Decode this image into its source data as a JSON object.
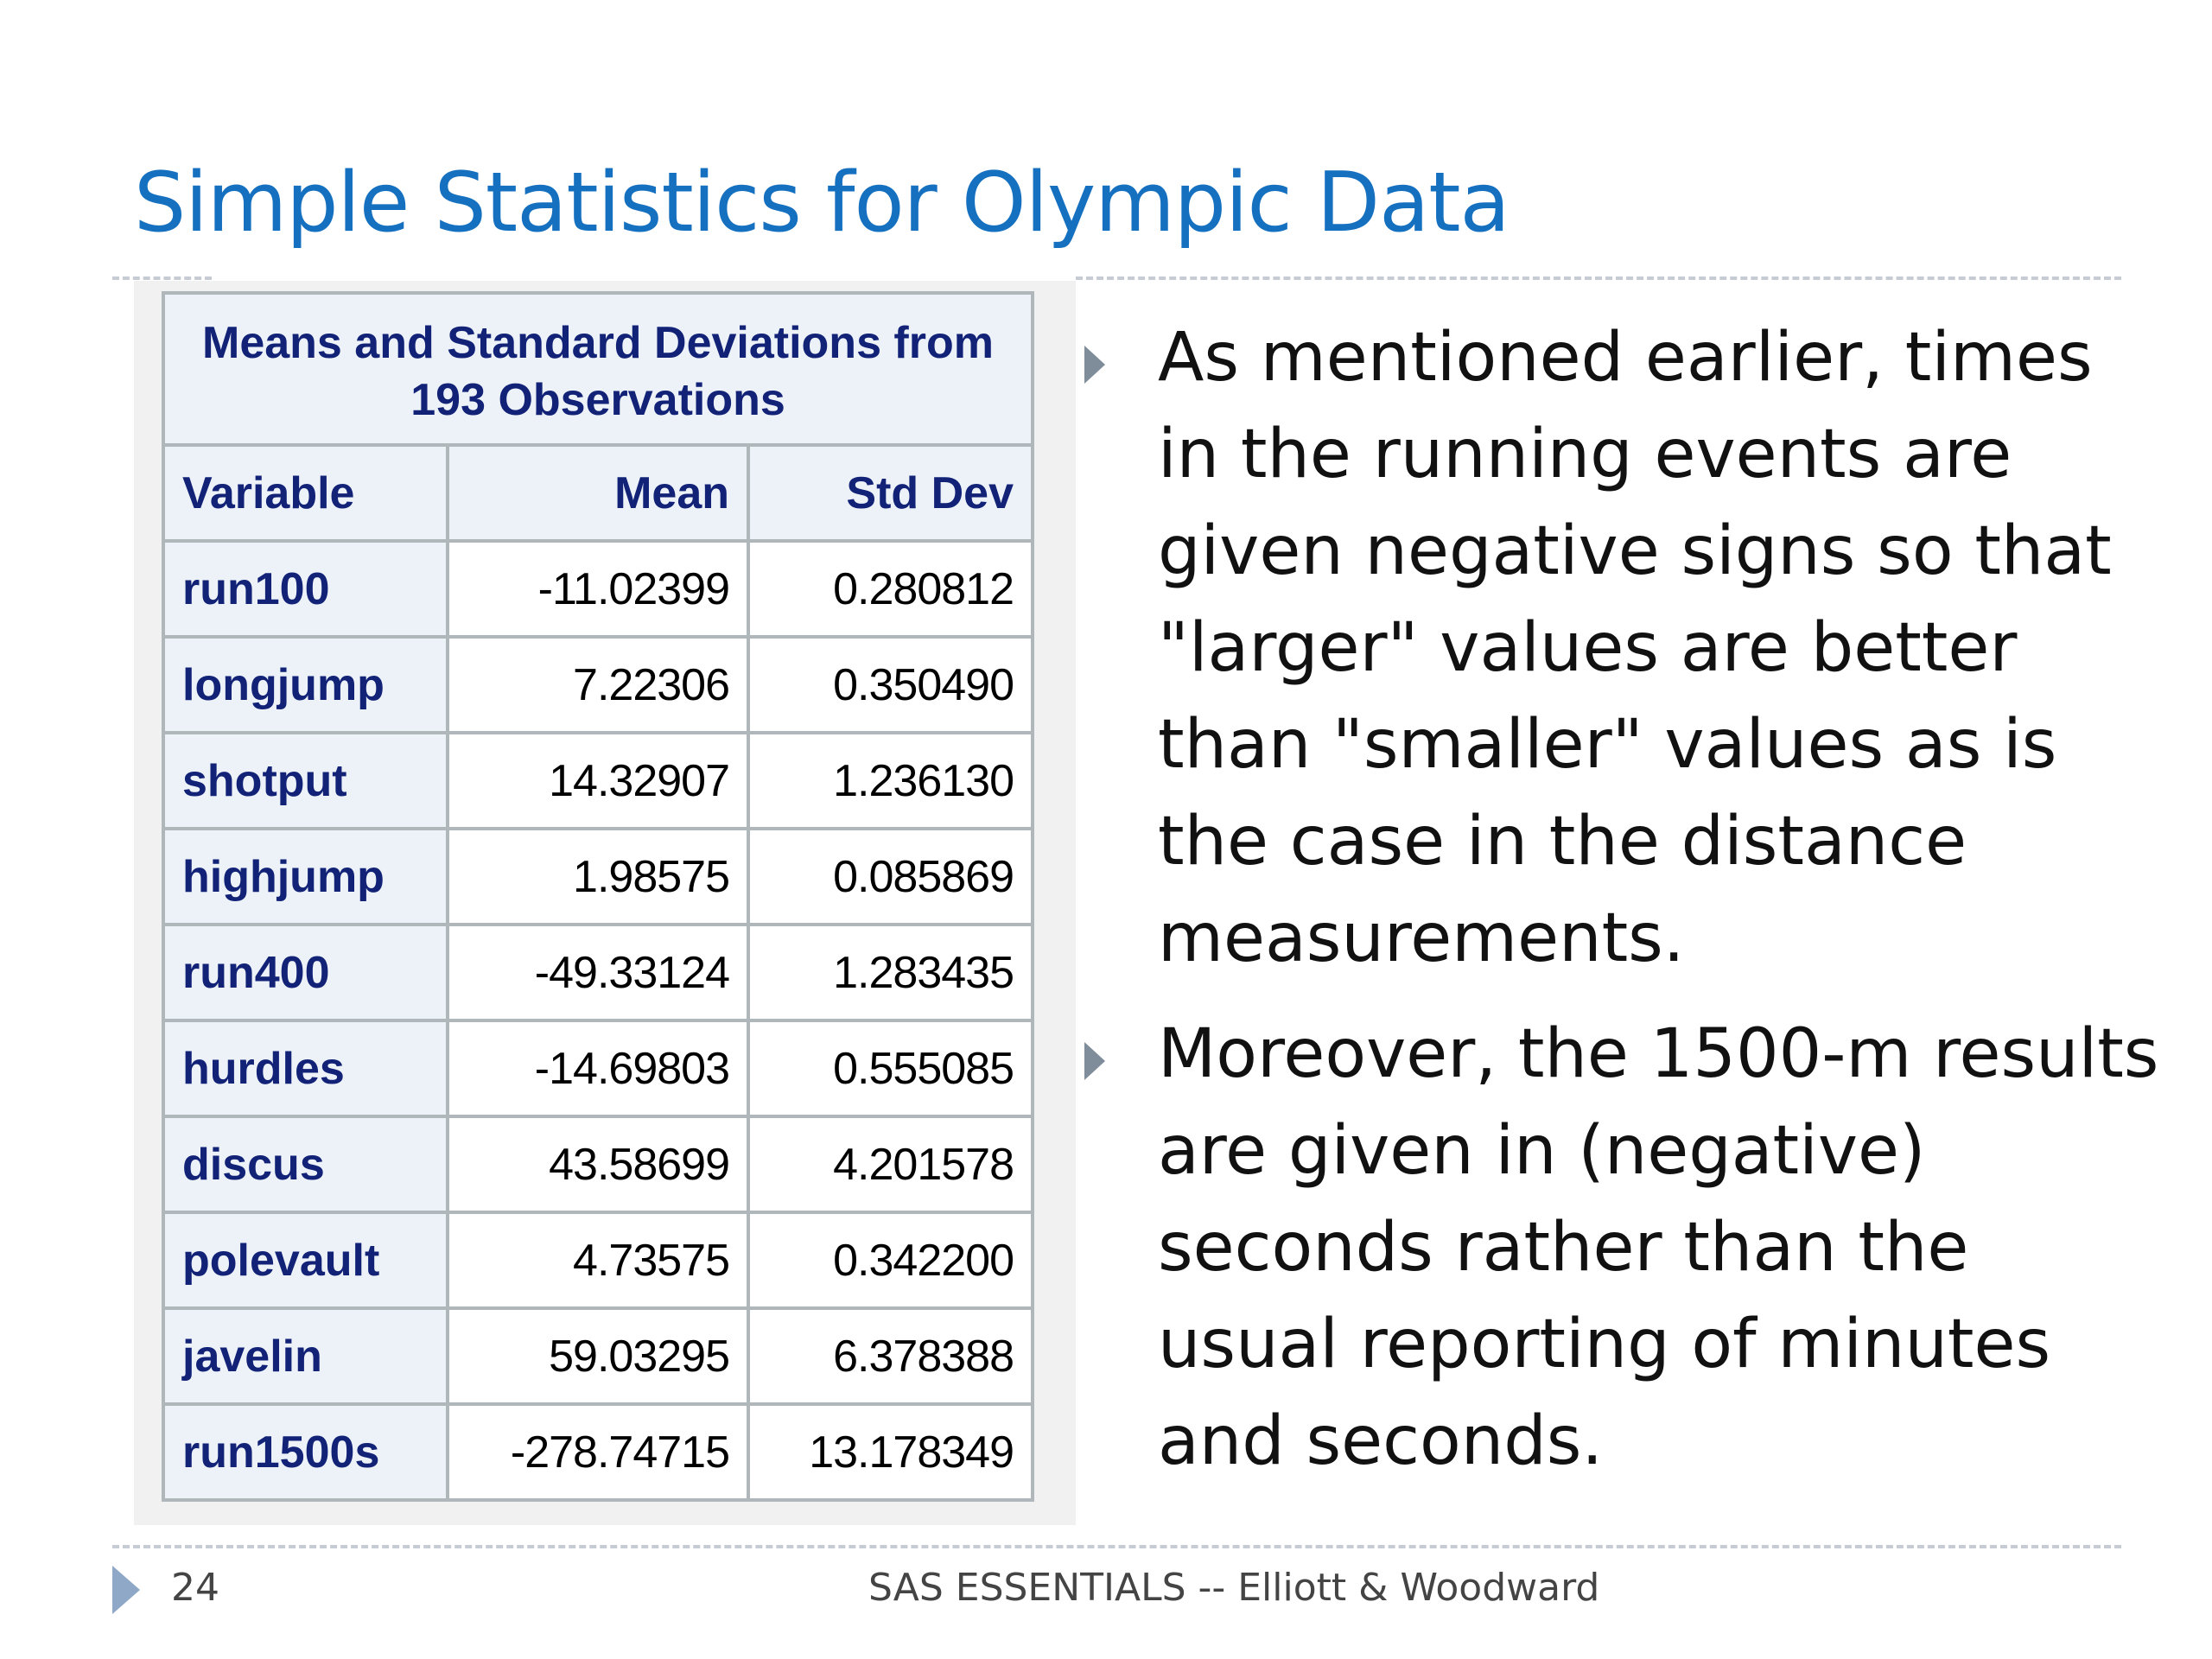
{
  "slide": {
    "title": "Simple Statistics for Olympic Data",
    "page_number": "24",
    "footer": "SAS ESSENTIALS -- Elliott & Woodward"
  },
  "table": {
    "caption_line1": "Means and Standard Deviations from",
    "caption_line2": "193 Observations",
    "headers": [
      "Variable",
      "Mean",
      "Std Dev"
    ],
    "rows": [
      {
        "variable": "run100",
        "mean": "-11.02399",
        "std_dev": "0.280812"
      },
      {
        "variable": "longjump",
        "mean": "7.22306",
        "std_dev": "0.350490"
      },
      {
        "variable": "shotput",
        "mean": "14.32907",
        "std_dev": "1.236130"
      },
      {
        "variable": "highjump",
        "mean": "1.98575",
        "std_dev": "0.085869"
      },
      {
        "variable": "run400",
        "mean": "-49.33124",
        "std_dev": "1.283435"
      },
      {
        "variable": "hurdles",
        "mean": "-14.69803",
        "std_dev": "0.555085"
      },
      {
        "variable": "discus",
        "mean": "43.58699",
        "std_dev": "4.201578"
      },
      {
        "variable": "polevault",
        "mean": "4.73575",
        "std_dev": "0.342200"
      },
      {
        "variable": "javelin",
        "mean": "59.03295",
        "std_dev": "6.378388"
      },
      {
        "variable": "run1500s",
        "mean": "-278.74715",
        "std_dev": "13.178349"
      }
    ]
  },
  "bullets": [
    "As mentioned earlier, times in the running events are given negative signs so that \"larger\" values are better than \"smaller\" values as is the case in the distance measurements.",
    "Moreover, the 1500-m results are given in (negative) seconds rather than the usual reporting of minutes and seconds."
  ],
  "colors": {
    "title": "#1570c0",
    "table_header_text": "#112277",
    "table_header_bg": "#edf2f9",
    "table_border": "#b0b7bb",
    "bullet_arrow": "#7f8c99"
  }
}
